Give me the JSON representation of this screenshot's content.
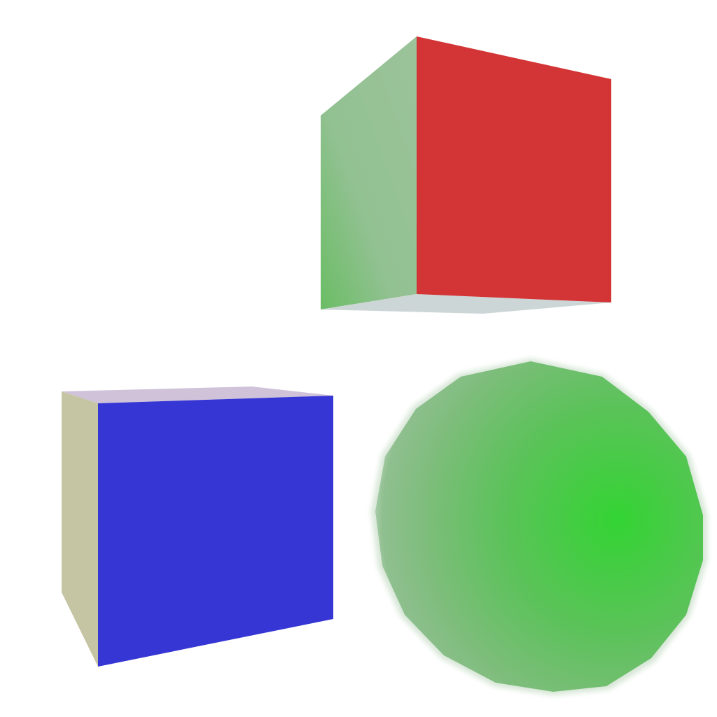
{
  "scene": {
    "background": "#ffffff",
    "objects": [
      {
        "kind": "cube",
        "faces": {
          "front": "#d33536",
          "side": "#92c192",
          "side_shadow": "#6bbd65",
          "bottom": "#cdd6d6"
        }
      },
      {
        "kind": "cube",
        "faces": {
          "front": "#3636d4",
          "side": "#c5c4a3",
          "top": "#cfc2d9"
        }
      },
      {
        "kind": "sphere",
        "colors": {
          "highlight": "#33d433",
          "mid": "#5cc25a",
          "edge": "#8fbf8f",
          "rim": "#cfe0cf"
        }
      }
    ]
  }
}
